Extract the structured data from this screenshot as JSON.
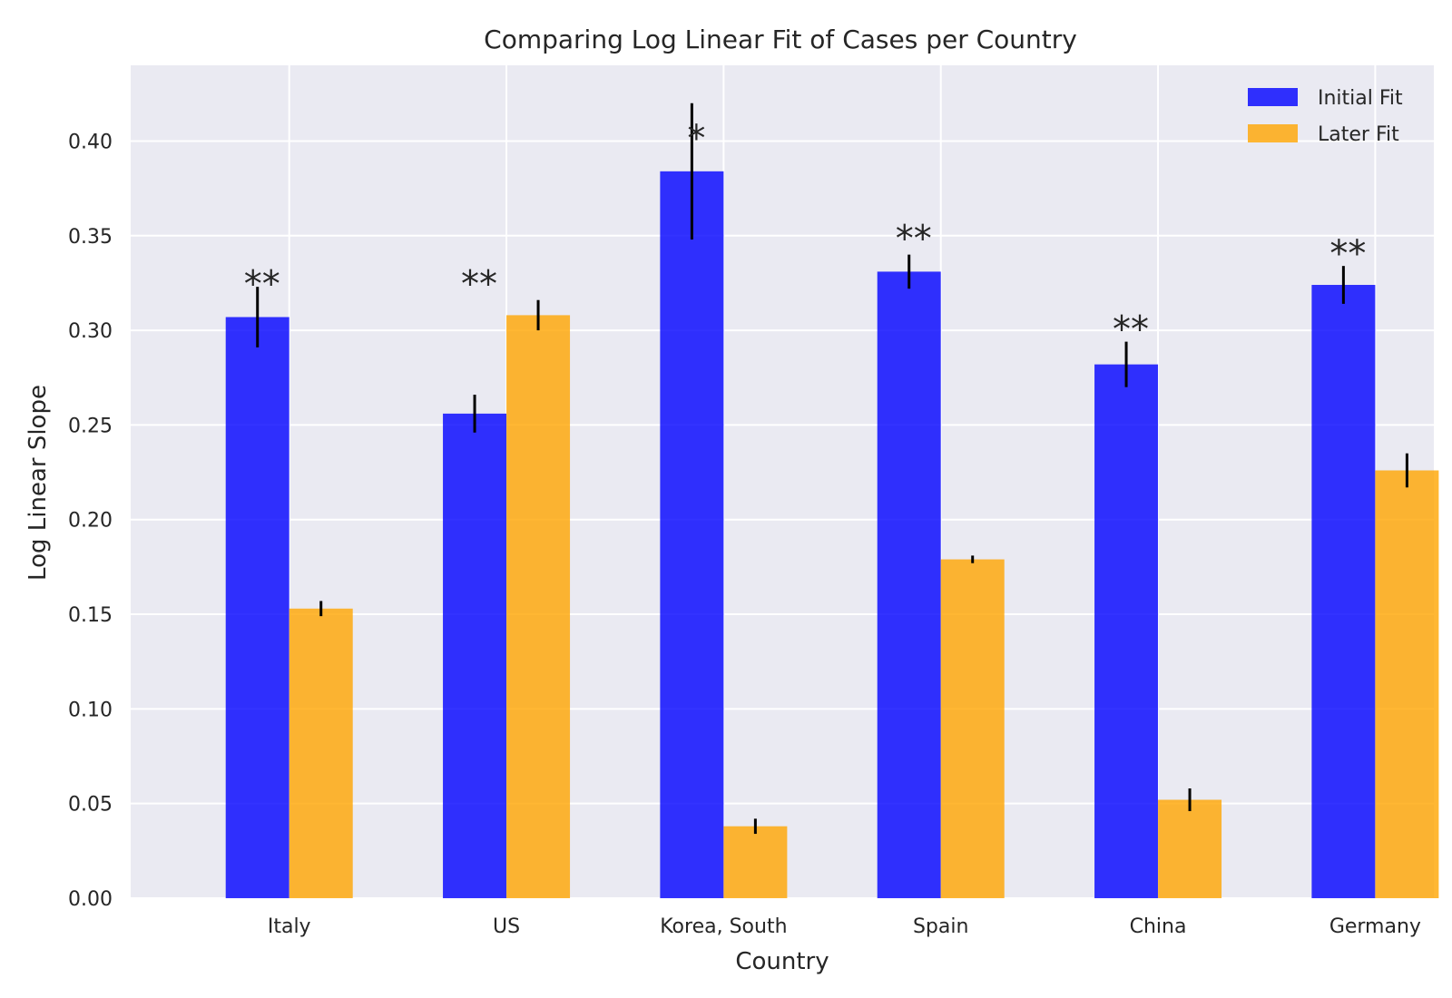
{
  "chart_data": {
    "type": "bar",
    "title": "Comparing Log Linear Fit of Cases per Country",
    "xlabel": "Country",
    "ylabel": "Log Linear Slope",
    "categories": [
      "Italy",
      "US",
      "Korea, South",
      "Spain",
      "China",
      "Germany"
    ],
    "series": [
      {
        "name": "Initial Fit",
        "color": "#0000ff",
        "values": [
          0.307,
          0.256,
          0.384,
          0.331,
          0.282,
          0.324
        ],
        "errors": [
          0.016,
          0.01,
          0.036,
          0.009,
          0.012,
          0.01
        ]
      },
      {
        "name": "Later Fit",
        "color": "#ffa500",
        "values": [
          0.153,
          0.308,
          0.038,
          0.179,
          0.052,
          0.226
        ],
        "errors": [
          0.004,
          0.008,
          0.004,
          0.002,
          0.006,
          0.009
        ]
      }
    ],
    "annotations": [
      {
        "category": "Italy",
        "text": "**",
        "y": 0.318
      },
      {
        "category": "US",
        "text": "**",
        "y": 0.318
      },
      {
        "category": "Korea, South",
        "text": "*",
        "y": 0.395
      },
      {
        "category": "Spain",
        "text": "**",
        "y": 0.342
      },
      {
        "category": "China",
        "text": "**",
        "y": 0.294
      },
      {
        "category": "Germany",
        "text": "**",
        "y": 0.334
      }
    ],
    "ylim": [
      0,
      0.44
    ],
    "yticks": [
      "0.00",
      "0.05",
      "0.10",
      "0.15",
      "0.20",
      "0.25",
      "0.30",
      "0.35",
      "0.40"
    ],
    "grid": true,
    "legend_position": "top-right",
    "background_color": "#eaeaf2",
    "grid_color": "#ffffff"
  }
}
